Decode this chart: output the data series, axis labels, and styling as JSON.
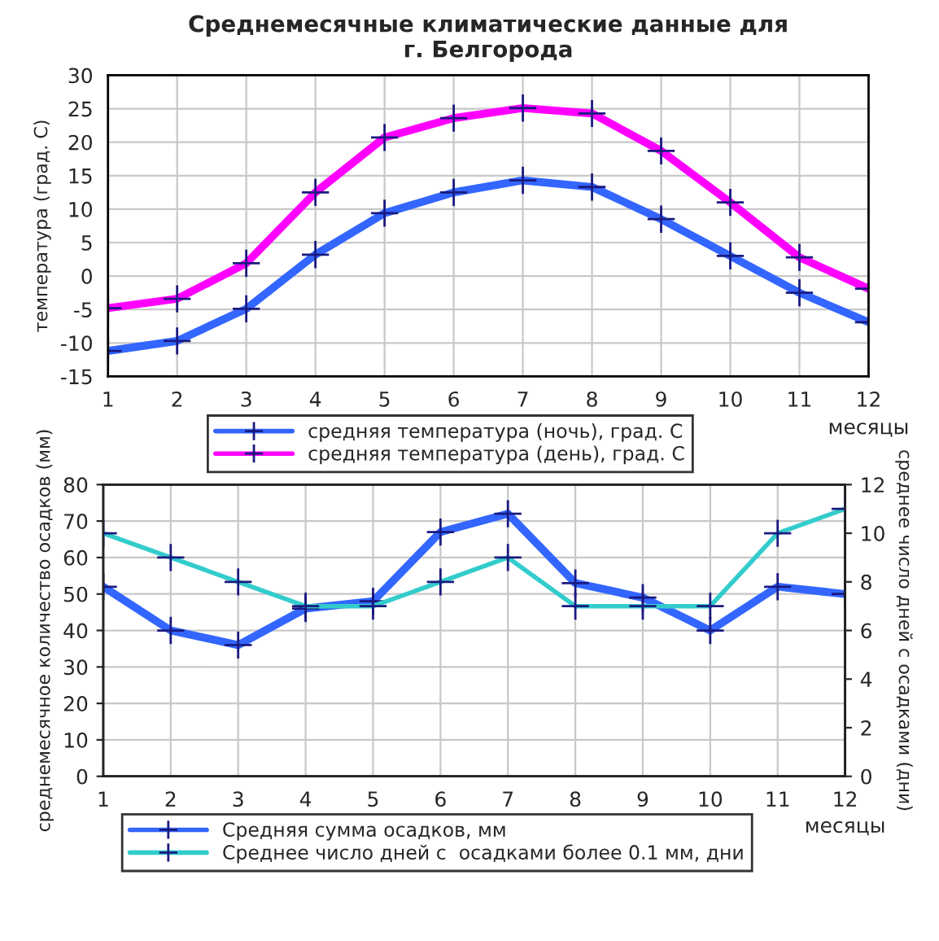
{
  "chart_data": [
    {
      "type": "line",
      "title": "Среднемесячные климатические данные для\nг. Белгорода",
      "xlabel": "месяцы",
      "ylabel": "температура (град. С)",
      "x": [
        1,
        2,
        3,
        4,
        5,
        6,
        7,
        8,
        9,
        10,
        11,
        12
      ],
      "xlim": [
        1,
        12
      ],
      "xticks": [
        1,
        2,
        3,
        4,
        5,
        6,
        7,
        8,
        9,
        10,
        11,
        12
      ],
      "ylim": [
        -15,
        30
      ],
      "yticks": [
        -15,
        -10,
        -5,
        0,
        5,
        10,
        15,
        20,
        25,
        30
      ],
      "grid": true,
      "legend": "bottom",
      "marker": "cross",
      "series": [
        {
          "name": "средняя температура (ночь), град. С",
          "color": "#3366ff",
          "values": [
            -11.2,
            -9.7,
            -4.9,
            3.2,
            9.4,
            12.5,
            14.3,
            13.3,
            8.5,
            3.0,
            -2.5,
            -6.9
          ]
        },
        {
          "name": "средняя температура (день), град. С",
          "color": "#ff00ff",
          "values": [
            -4.8,
            -3.4,
            1.9,
            12.5,
            20.7,
            23.6,
            25.1,
            24.3,
            18.7,
            11.0,
            2.8,
            -1.9
          ]
        }
      ]
    },
    {
      "type": "line",
      "xlabel": "месяцы",
      "ylabel": "среднемесячное количество осадков (мм)",
      "y2label": "среднее число дней с осадками (дни)",
      "x": [
        1,
        2,
        3,
        4,
        5,
        6,
        7,
        8,
        9,
        10,
        11,
        12
      ],
      "xlim": [
        1,
        12
      ],
      "xticks": [
        1,
        2,
        3,
        4,
        5,
        6,
        7,
        8,
        9,
        10,
        11,
        12
      ],
      "ylim": [
        0,
        80
      ],
      "yticks": [
        0,
        10,
        20,
        30,
        40,
        50,
        60,
        70,
        80
      ],
      "y2lim": [
        0,
        12
      ],
      "y2ticks": [
        0,
        2,
        4,
        6,
        8,
        10,
        12
      ],
      "grid": true,
      "legend": "bottom",
      "marker": "cross",
      "series": [
        {
          "name": "Средняя сумма осадков, мм",
          "color": "#3366ff",
          "values": [
            52,
            40,
            36,
            46,
            48,
            67,
            72,
            53,
            49,
            40,
            52,
            50
          ]
        },
        {
          "name": "Среднее число дней с  осадками более 0.1 мм, дни",
          "color": "#33cccc",
          "axis": "y2",
          "values": [
            10,
            9,
            8,
            7,
            7,
            8,
            9,
            7,
            7,
            7,
            10,
            11
          ]
        }
      ]
    }
  ]
}
